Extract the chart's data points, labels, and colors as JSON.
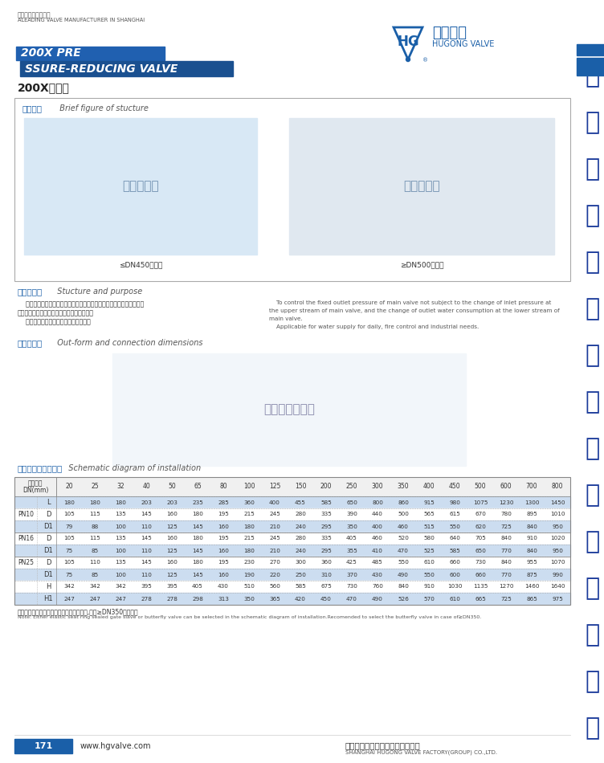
{
  "page_bg": "#ffffff",
  "top_text_cn": "来自上海的阀业巨子",
  "top_text_en": "ALEADING VALVE MANUFACTURER IN SHANGHAI",
  "title_box1_text": "200X PRE",
  "title_box2_text": "SSURE-REDUCING VALVE",
  "subtitle_cn": "200X减压阀",
  "section1_title_cn": "结构简图",
  "section1_title_en": "Brief figure of stucture",
  "caption1": "≤DN450隔膜式",
  "caption2": "≥DN500活塞式",
  "section2_title_cn": "结构及用途",
  "section2_title_en": "Stucture and purpose",
  "section2_cn_line1": "    控制主阀的固定出口压力，不因主阀上游进口压力变化而改变，亦不因",
  "section2_cn_line2": "主阀下游出口用水量变化而改变其出口压力。",
  "section2_cn_line3": "    可用于生活给水消防及工业给水系统。",
  "section2_en_line1": "    To control the fixed outlet pressure of main valve not subject to the change of inlet pressure at",
  "section2_en_line2": "the upper stream of main valve, and the change of outlet water consumption at the lower stream of",
  "section2_en_line3": "main valve.",
  "section2_en_line4": "    Applicable for water supply for daily, fire control and industrial needs.",
  "section3_title_cn": "安装示意图",
  "section3_title_en": "Out-form and connection dimensions",
  "section4_title_cn": "主要外形及连接尺寸",
  "section4_title_en": "Schematic diagram of installation",
  "dn_label_line1": "公称通径",
  "dn_label_line2": "DN(mm)",
  "dn_values": [
    "20",
    "25",
    "32",
    "40",
    "50",
    "65",
    "80",
    "100",
    "125",
    "150",
    "200",
    "250",
    "300",
    "350",
    "400",
    "450",
    "500",
    "600",
    "700",
    "800"
  ],
  "table_rows": [
    {
      "label": "L",
      "pn": "",
      "values": [
        180,
        180,
        180,
        203,
        203,
        235,
        285,
        360,
        400,
        455,
        585,
        650,
        800,
        860,
        915,
        980,
        1075,
        1230,
        1300,
        1450
      ],
      "shaded": true
    },
    {
      "label": "D",
      "pn": "PN10",
      "values": [
        105,
        115,
        135,
        145,
        160,
        180,
        195,
        215,
        245,
        280,
        335,
        390,
        440,
        500,
        565,
        615,
        670,
        780,
        895,
        1010
      ],
      "shaded": false
    },
    {
      "label": "D1",
      "pn": "",
      "values": [
        79,
        88,
        100,
        110,
        125,
        145,
        160,
        180,
        210,
        240,
        295,
        350,
        400,
        460,
        515,
        550,
        620,
        725,
        840,
        950
      ],
      "shaded": true
    },
    {
      "label": "D",
      "pn": "PN16",
      "values": [
        105,
        115,
        135,
        145,
        160,
        180,
        195,
        215,
        245,
        280,
        335,
        405,
        460,
        520,
        580,
        640,
        705,
        840,
        910,
        1020
      ],
      "shaded": false
    },
    {
      "label": "D1",
      "pn": "",
      "values": [
        75,
        85,
        100,
        110,
        125,
        145,
        160,
        180,
        210,
        240,
        295,
        355,
        410,
        470,
        525,
        585,
        650,
        770,
        840,
        950
      ],
      "shaded": true
    },
    {
      "label": "D",
      "pn": "PN25",
      "values": [
        105,
        110,
        135,
        145,
        160,
        180,
        195,
        230,
        270,
        300,
        360,
        425,
        485,
        550,
        610,
        660,
        730,
        840,
        955,
        1070
      ],
      "shaded": false
    },
    {
      "label": "D1",
      "pn": "",
      "values": [
        75,
        85,
        100,
        110,
        125,
        145,
        160,
        190,
        220,
        250,
        310,
        370,
        430,
        490,
        550,
        600,
        660,
        770,
        875,
        990
      ],
      "shaded": true
    },
    {
      "label": "H",
      "pn": "",
      "values": [
        342,
        342,
        342,
        395,
        395,
        405,
        430,
        510,
        560,
        585,
        675,
        730,
        760,
        840,
        910,
        1030,
        1135,
        1270,
        1460,
        1640
      ],
      "shaded": false
    },
    {
      "label": "H1",
      "pn": "",
      "values": [
        247,
        247,
        247,
        278,
        278,
        298,
        313,
        350,
        365,
        420,
        450,
        470,
        490,
        526,
        570,
        610,
        665,
        725,
        865,
        975
      ],
      "shaded": true
    }
  ],
  "note_cn": "注：安装示意图中弹性座封闸阀或蝶阀任选,建议≥DN350选蝶阀。",
  "note_en": "Note: Either elastic seat ring sealed gate slave or butterfly valve can be selected in the schematic diagram of installation.Recomended to select the butterfly valve in case of≥DN350.",
  "page_num": "171",
  "website": "www.hgvalve.com",
  "footer_cn": "上海沪工阀门厂（集团）有限公司",
  "footer_en": "SHANGHAI HUGONG VALVE FACTORY(GROUP) CO.,LTD.",
  "calligraphy_text": "上海沪工阀门厂（集团）有限公司",
  "accent_color": "#1a5fa8",
  "accent_dark": "#1a4f8a",
  "shaded_bg": "#ccddf0",
  "logo_text": "沪工阀门",
  "logo_sub": "HUGONG VALVE"
}
